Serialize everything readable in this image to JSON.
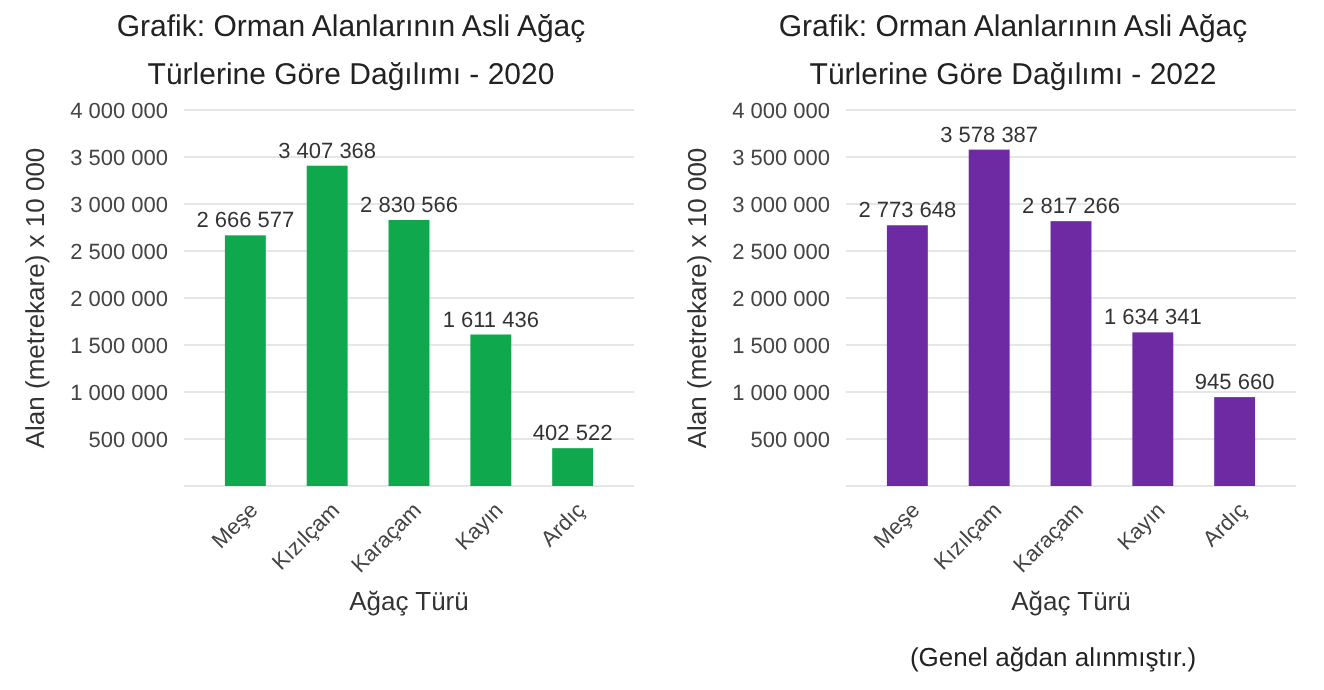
{
  "chart_data": [
    {
      "type": "bar",
      "title": "Grafik: Orman Alanlarının Asli Ağaç Türlerine Göre Dağılımı - 2020",
      "xlabel": "Ağaç Türü",
      "ylabel": "Alan (metrekare) x 10 000",
      "categories": [
        "Meşe",
        "Kızılçam",
        "Karaçam",
        "Kayın",
        "Ardıç"
      ],
      "values": [
        2666577,
        3407368,
        2830566,
        1611436,
        402522
      ],
      "value_labels": [
        "2 666 577",
        "3 407 368",
        "2 830 566",
        "1 611 436",
        "402 522"
      ],
      "color": "#0fa84c",
      "ylim": [
        0,
        4000000
      ],
      "yticks": [
        {
          "value": 500000,
          "label": "500 000"
        },
        {
          "value": 1000000,
          "label": "1 000 000"
        },
        {
          "value": 1500000,
          "label": "1 500 000"
        },
        {
          "value": 2000000,
          "label": "2 000 000"
        },
        {
          "value": 2500000,
          "label": "2 500 000"
        },
        {
          "value": 3000000,
          "label": "3 000 000"
        },
        {
          "value": 3500000,
          "label": "3 500 000"
        },
        {
          "value": 4000000,
          "label": "4 000 000"
        }
      ],
      "grid": "y"
    },
    {
      "type": "bar",
      "title": "Grafik: Orman Alanlarının Asli Ağaç Türlerine Göre Dağılımı - 2022",
      "xlabel": "Ağaç Türü",
      "ylabel": "Alan (metrekare) x 10 000",
      "categories": [
        "Meşe",
        "Kızılçam",
        "Karaçam",
        "Kayın",
        "Ardıç"
      ],
      "values": [
        2773648,
        3578387,
        2817266,
        1634341,
        945660
      ],
      "value_labels": [
        "2 773 648",
        "3 578 387",
        "2 817 266",
        "1 634 341",
        "945 660"
      ],
      "color": "#6e2aa2",
      "ylim": [
        0,
        4000000
      ],
      "yticks": [
        {
          "value": 500000,
          "label": "500 000"
        },
        {
          "value": 1000000,
          "label": "1 000 000"
        },
        {
          "value": 1500000,
          "label": "1 500 000"
        },
        {
          "value": 2000000,
          "label": "2 000 000"
        },
        {
          "value": 2500000,
          "label": "2 500 000"
        },
        {
          "value": 3000000,
          "label": "3 000 000"
        },
        {
          "value": 3500000,
          "label": "3 500 000"
        },
        {
          "value": 4000000,
          "label": "4 000 000"
        }
      ],
      "grid": "y",
      "annotations": [
        "(Genel ağdan alınmıştır.)"
      ]
    }
  ]
}
